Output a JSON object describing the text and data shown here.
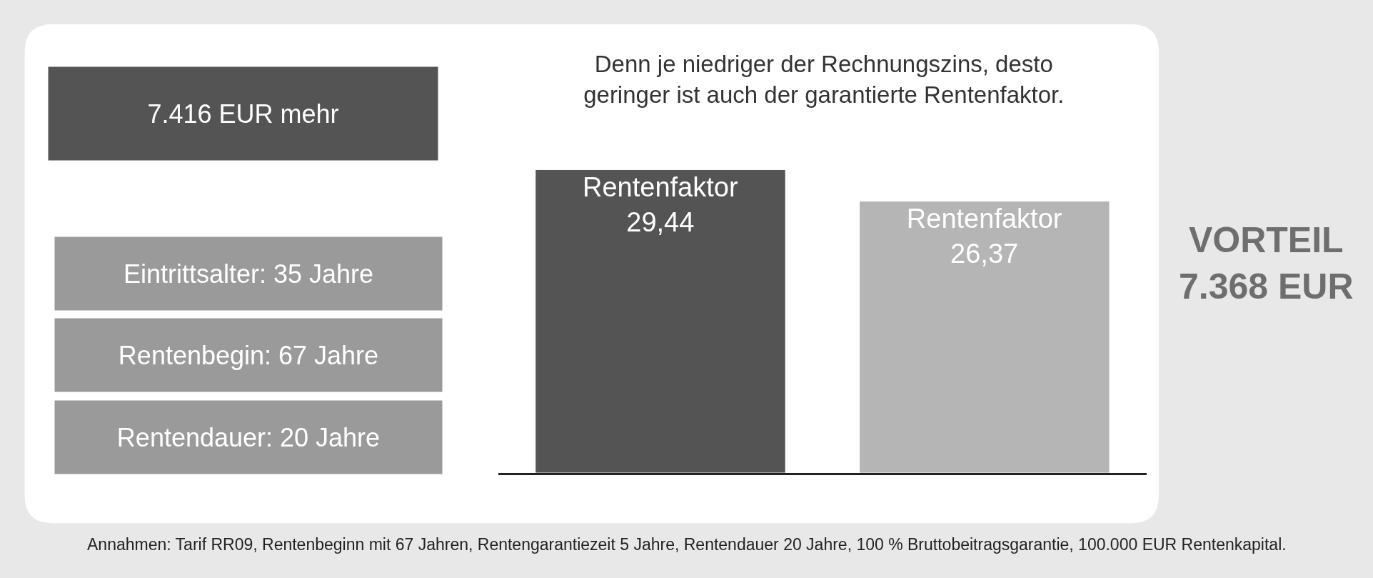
{
  "chart_data": {
    "type": "bar",
    "title": "Denn je niedriger der Rechnungszins, desto\ngeringer ist auch der garantierte Rentenfaktor.",
    "categories": [
      null,
      null
    ],
    "values": [
      29.44,
      26.37
    ],
    "colors": [
      "#545454",
      "#b5b5b5"
    ],
    "value_labels": [
      "Rentenfaktor\n29,44",
      "Rentenfaktor\n26,37"
    ],
    "tick_labels": false,
    "annotations": [
      "7.416 EUR mehr",
      "Eintrittsalter: 35 Jahre",
      "Rentenbegin: 67 Jahre",
      "Rentendauer: 20 Jahre",
      "VORTEIL\n7.368 EUR",
      "Annahmen: Tarif RR09, Rentenbeginn mit 67 Jahren, Rentengarantiezeit 5 Jahre, Rentendauer 20 Jahre, 100 % Bruttobeitragsgarantie, 100.000 EUR Rentenkapital."
    ]
  }
}
